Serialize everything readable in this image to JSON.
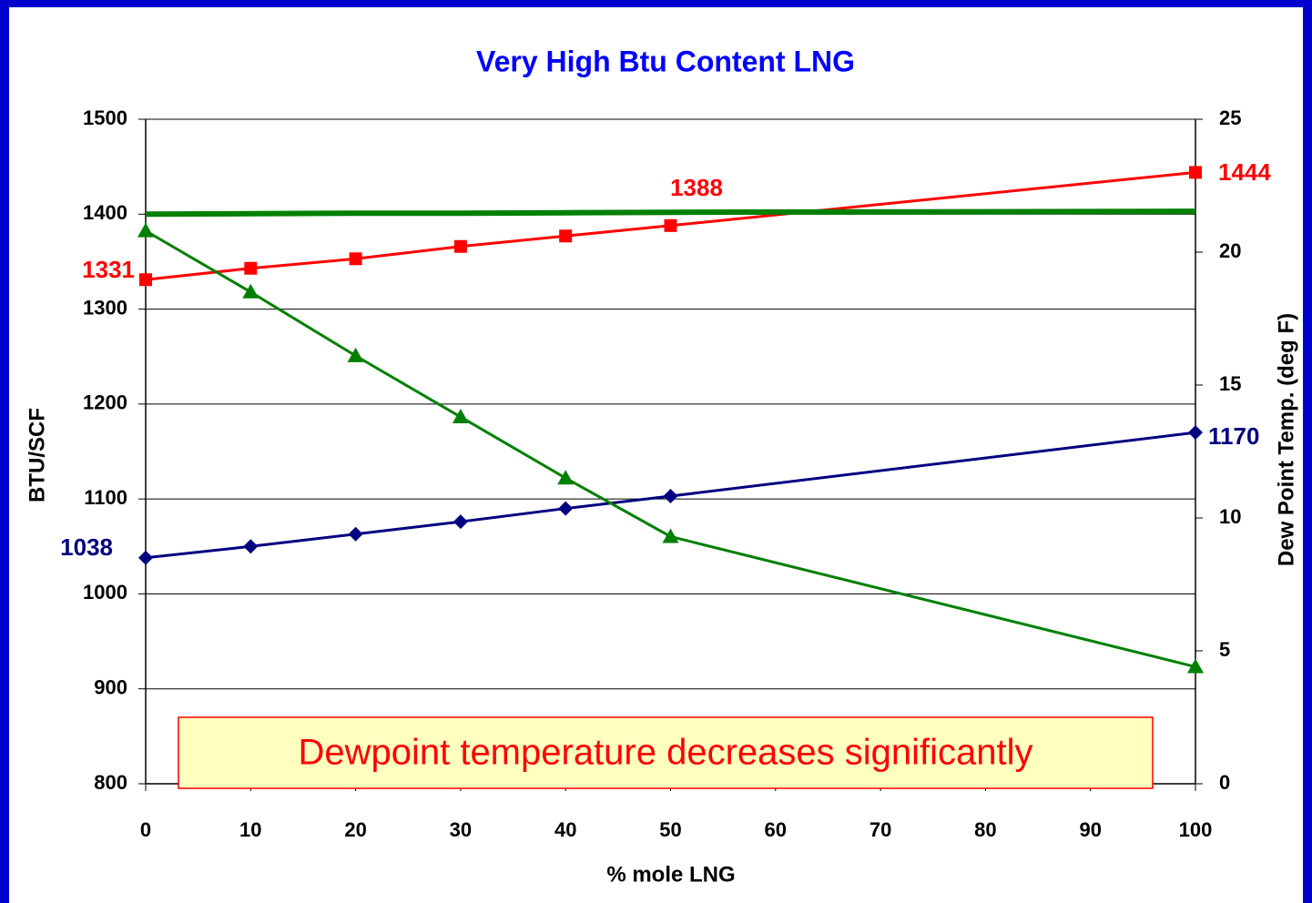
{
  "chart_data": {
    "type": "line",
    "title": "Very High Btu Content LNG",
    "xlabel": "% mole LNG",
    "ylabel": "BTU/SCF",
    "y2label": "Dew Point Temp. (deg F)",
    "annotation": "Dewpoint temperature decreases significantly",
    "x": [
      0,
      10,
      20,
      30,
      40,
      50,
      100
    ],
    "xlim": [
      0,
      100
    ],
    "xticks": [
      0,
      10,
      20,
      30,
      40,
      50,
      60,
      70,
      80,
      90,
      100
    ],
    "ylim": [
      800,
      1500
    ],
    "yticks": [
      800,
      900,
      1000,
      1100,
      1200,
      1300,
      1400,
      1500
    ],
    "y2lim": [
      0,
      25
    ],
    "y2ticks": [
      0,
      5,
      10,
      15,
      20,
      25
    ],
    "grid": true,
    "series": [
      {
        "color": "#ff0000",
        "marker": "square",
        "values": [
          1331,
          1343,
          1353,
          1366,
          1377,
          1388,
          1444
        ],
        "labels_at": [
          0,
          5,
          6
        ]
      },
      {
        "color": "#000080",
        "marker": "diamond",
        "values": [
          1038,
          1050,
          1063,
          1076,
          1090,
          1103,
          1170
        ],
        "labels_at": [
          0,
          6
        ]
      },
      {
        "color": "#008000",
        "marker": "triangle",
        "axis": "y2",
        "values": [
          20.8,
          18.5,
          16.1,
          13.8,
          11.5,
          9.3,
          4.4
        ]
      },
      {
        "color": "#008000",
        "marker": "none",
        "line_width": 6,
        "values": [
          1400,
          1400.5,
          1401,
          1401,
          1401.5,
          1402,
          1403
        ]
      }
    ]
  }
}
